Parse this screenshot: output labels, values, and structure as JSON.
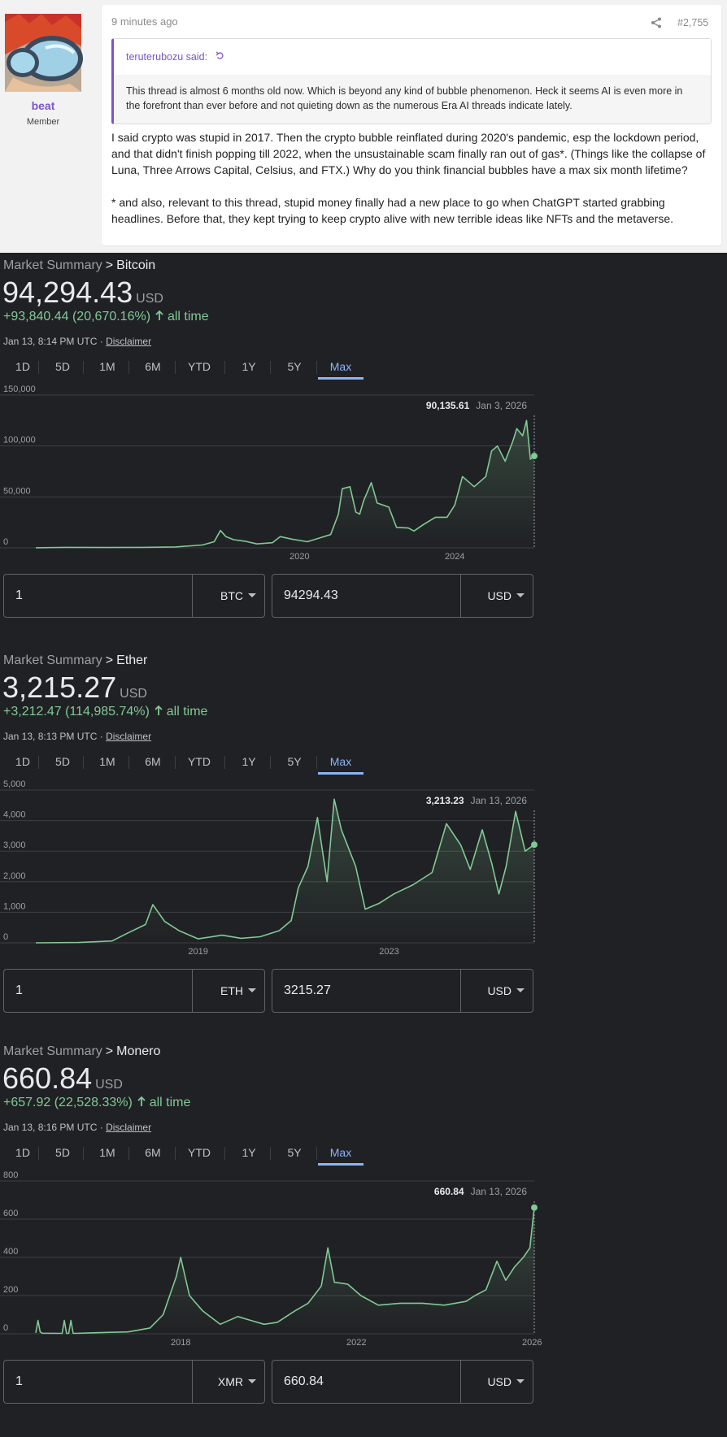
{
  "post": {
    "username": "beat",
    "user_title": "Member",
    "time": "9 minutes ago",
    "post_number": "#2,755",
    "quote": {
      "author": "teruterubozu said:",
      "text": "This thread is almost 6 months old now. Which is beyond any kind of bubble phenomenon. Heck it seems AI is even more in the forefront than ever before and not quieting down as the numerous Era AI threads indicate lately."
    },
    "paragraphs": [
      "I said crypto was stupid in 2017. Then the crypto bubble reinflated during 2020's pandemic, esp the lockdown period, and that didn't finish popping till 2022, when the unsustainable scam finally ran out of gas*. (Things like the collapse of Luna, Three Arrows Capital, Celsius, and FTX.) Why do you think financial bubbles have a max six month lifetime?",
      "* and also, relevant to this thread, stupid money finally had a new place to go when ChatGPT started grabbing headlines. Before that, they kept trying to keep crypto alive with new terrible ideas like NFTs and the metaverse."
    ]
  },
  "ranges": [
    "1D",
    "5D",
    "1M",
    "6M",
    "YTD",
    "1Y",
    "5Y",
    "Max"
  ],
  "active_range": "Max",
  "panels": [
    {
      "crumb_prefix": "Market Summary",
      "crumb_sep": ">",
      "asset": "Bitcoin",
      "price": "94,294.43",
      "currency": "USD",
      "change": "+93,840.44 (20,670.16%)",
      "change_suffix": "all time",
      "timestamp": "Jan 13, 8:14 PM UTC ·",
      "disclaimer": "Disclaimer",
      "hover_value": "90,135.61",
      "hover_date": "Jan 3, 2026",
      "from_amount": "1",
      "from_unit": "BTC",
      "to_amount": "94294.43",
      "to_unit": "USD"
    },
    {
      "crumb_prefix": "Market Summary",
      "crumb_sep": ">",
      "asset": "Ether",
      "price": "3,215.27",
      "currency": "USD",
      "change": "+3,212.47 (114,985.74%)",
      "change_suffix": "all time",
      "timestamp": "Jan 13, 8:13 PM UTC ·",
      "disclaimer": "Disclaimer",
      "hover_value": "3,213.23",
      "hover_date": "Jan 13, 2026",
      "from_amount": "1",
      "from_unit": "ETH",
      "to_amount": "3215.27",
      "to_unit": "USD"
    },
    {
      "crumb_prefix": "Market Summary",
      "crumb_sep": ">",
      "asset": "Monero",
      "price": "660.84",
      "currency": "USD",
      "change": "+657.92 (22,528.33%)",
      "change_suffix": "all time",
      "timestamp": "Jan 13, 8:16 PM UTC ·",
      "disclaimer": "Disclaimer",
      "hover_value": "660.84",
      "hover_date": "Jan 13, 2026",
      "from_amount": "1",
      "from_unit": "XMR",
      "to_amount": "660.84",
      "to_unit": "USD"
    }
  ],
  "colors": {
    "line": "#81c995",
    "grid": "#3c4043",
    "accent": "#8ab4f8",
    "forum_accent": "#7d55c7"
  },
  "chart_data": [
    {
      "type": "area",
      "title": "Bitcoin",
      "xlabel": "",
      "ylabel": "",
      "xlim": [
        2013.2,
        2026.05
      ],
      "ylim": [
        0,
        150000
      ],
      "yticks": [
        0,
        50000,
        100000,
        150000
      ],
      "ytick_labels": [
        "0",
        "50,000",
        "100,000",
        "150,000"
      ],
      "xticks": [
        2020,
        2024
      ],
      "xtick_labels": [
        "2020",
        "2024"
      ],
      "grid": true,
      "x": [
        2013.2,
        2014.0,
        2015.0,
        2016.0,
        2016.8,
        2017.5,
        2017.8,
        2017.96,
        2018.1,
        2018.3,
        2018.6,
        2018.9,
        2019.3,
        2019.5,
        2019.8,
        2020.2,
        2020.5,
        2020.8,
        2021.0,
        2021.1,
        2021.3,
        2021.45,
        2021.55,
        2021.65,
        2021.85,
        2022.0,
        2022.3,
        2022.5,
        2022.8,
        2022.95,
        2023.2,
        2023.5,
        2023.8,
        2024.0,
        2024.2,
        2024.5,
        2024.8,
        2024.95,
        2025.1,
        2025.3,
        2025.5,
        2025.6,
        2025.75,
        2025.85,
        2025.95,
        2026.05
      ],
      "y": [
        100,
        500,
        300,
        500,
        900,
        2800,
        6000,
        17000,
        11000,
        8000,
        6500,
        3800,
        5000,
        11000,
        8500,
        6000,
        9500,
        13000,
        33000,
        58000,
        60000,
        35000,
        33000,
        46000,
        64000,
        44000,
        40000,
        20000,
        19500,
        16500,
        23000,
        30000,
        30000,
        42000,
        70000,
        60000,
        70000,
        95000,
        100000,
        85000,
        105000,
        117000,
        110000,
        125000,
        87000,
        90135
      ]
    },
    {
      "type": "area",
      "title": "Ether",
      "xlabel": "",
      "ylabel": "",
      "xlim": [
        2015.6,
        2026.04
      ],
      "ylim": [
        0,
        5000
      ],
      "yticks": [
        0,
        1000,
        2000,
        3000,
        4000,
        5000
      ],
      "ytick_labels": [
        "0",
        "1,000",
        "2,000",
        "3,000",
        "4,000",
        "5,000"
      ],
      "xticks": [
        2019,
        2023
      ],
      "xtick_labels": [
        "2019",
        "2023"
      ],
      "grid": true,
      "x": [
        2015.6,
        2016.5,
        2017.2,
        2017.5,
        2017.9,
        2018.05,
        2018.3,
        2018.6,
        2019.0,
        2019.5,
        2019.9,
        2020.3,
        2020.7,
        2020.95,
        2021.1,
        2021.3,
        2021.5,
        2021.7,
        2021.85,
        2022.0,
        2022.3,
        2022.5,
        2022.8,
        2023.1,
        2023.5,
        2023.9,
        2024.2,
        2024.5,
        2024.7,
        2024.95,
        2025.15,
        2025.3,
        2025.45,
        2025.65,
        2025.85,
        2026.04
      ],
      "y": [
        1,
        10,
        60,
        300,
        600,
        1250,
        700,
        400,
        130,
        250,
        150,
        200,
        400,
        730,
        1800,
        2500,
        4100,
        2000,
        4700,
        3700,
        2500,
        1100,
        1300,
        1600,
        1900,
        2300,
        3900,
        3200,
        2400,
        3700,
        2600,
        1600,
        2500,
        4300,
        3000,
        3213
      ]
    },
    {
      "type": "area",
      "title": "Monero",
      "xlabel": "",
      "ylabel": "",
      "xlim": [
        2014.7,
        2026.05
      ],
      "ylim": [
        0,
        800
      ],
      "yticks": [
        0,
        200,
        400,
        600,
        800
      ],
      "ytick_labels": [
        "0",
        "200",
        "400",
        "600",
        "800"
      ],
      "xticks": [
        2018,
        2022,
        2026
      ],
      "xtick_labels": [
        "2018",
        "2022",
        "2026"
      ],
      "grid": true,
      "x": [
        2014.7,
        2014.75,
        2014.8,
        2014.85,
        2015.3,
        2015.35,
        2015.4,
        2015.45,
        2015.5,
        2015.55,
        2015.6,
        2016.0,
        2016.8,
        2017.3,
        2017.6,
        2017.9,
        2018.0,
        2018.2,
        2018.5,
        2018.9,
        2019.3,
        2019.6,
        2019.9,
        2020.2,
        2020.6,
        2020.9,
        2021.2,
        2021.35,
        2021.5,
        2021.8,
        2022.1,
        2022.5,
        2023.0,
        2023.5,
        2024.0,
        2024.5,
        2024.7,
        2024.95,
        2025.2,
        2025.4,
        2025.6,
        2025.8,
        2025.95,
        2026.05
      ],
      "y": [
        5,
        70,
        10,
        3,
        2,
        70,
        2,
        2,
        70,
        3,
        2,
        5,
        10,
        30,
        100,
        300,
        400,
        200,
        120,
        50,
        90,
        70,
        50,
        60,
        120,
        160,
        250,
        450,
        270,
        260,
        200,
        150,
        160,
        160,
        150,
        170,
        200,
        230,
        380,
        280,
        350,
        400,
        450,
        660.84
      ]
    }
  ]
}
